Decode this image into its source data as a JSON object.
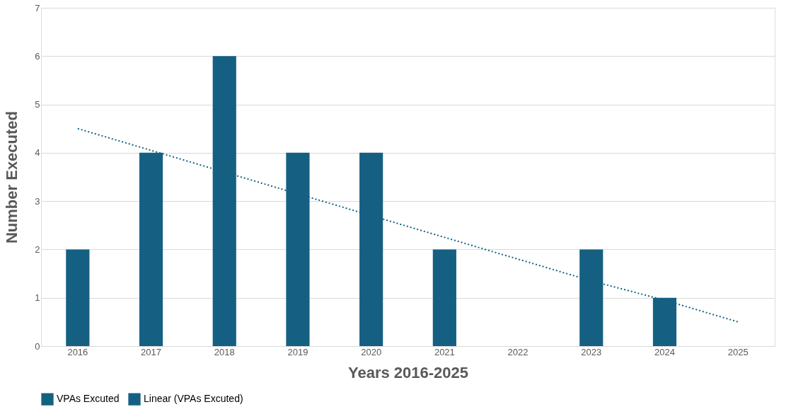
{
  "chart_data": {
    "type": "bar",
    "xlabel": "Years 2016-2025",
    "ylabel": "Number Executed",
    "categories": [
      "2016",
      "2017",
      "2018",
      "2019",
      "2020",
      "2021",
      "2022",
      "2023",
      "2024",
      "2025"
    ],
    "series": [
      {
        "name": "VPAs Excuted",
        "color": "#156082",
        "values": [
          2,
          4,
          6,
          4,
          4,
          2,
          0,
          2,
          1,
          0
        ]
      },
      {
        "name": "Linear (VPAs Excuted)",
        "type": "line",
        "color": "#156082",
        "line_style": "dotted",
        "marker": "none",
        "values": [
          4.5,
          4.05,
          3.6,
          3.15,
          2.7,
          2.25,
          1.8,
          1.35,
          0.95,
          0.5
        ]
      }
    ],
    "ylim": [
      0,
      7
    ],
    "yticks": [
      0,
      1,
      2,
      3,
      4,
      5,
      6,
      7
    ],
    "grid": "y",
    "legend": "bottom"
  }
}
